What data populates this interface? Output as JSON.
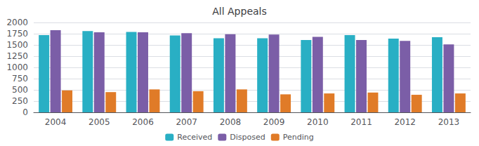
{
  "chart_data": {
    "type": "bar",
    "title": "All Appeals",
    "categories": [
      "2004",
      "2005",
      "2006",
      "2007",
      "2008",
      "2009",
      "2010",
      "2011",
      "2012",
      "2013"
    ],
    "series": [
      {
        "name": "Received",
        "color": "#29afc4",
        "values": [
          1720,
          1810,
          1790,
          1710,
          1650,
          1650,
          1610,
          1720,
          1640,
          1670
        ]
      },
      {
        "name": "Disposed",
        "color": "#7b5ea7",
        "values": [
          1830,
          1780,
          1780,
          1760,
          1740,
          1730,
          1680,
          1610,
          1590,
          1510
        ]
      },
      {
        "name": "Pending",
        "color": "#e07b28",
        "values": [
          490,
          450,
          510,
          470,
          510,
          400,
          420,
          440,
          390,
          420
        ]
      }
    ],
    "ylim": [
      0,
      2000
    ],
    "yticks": [
      0,
      250,
      500,
      750,
      1000,
      1250,
      1500,
      1750,
      2000
    ],
    "grid": true,
    "legend": "bottom"
  }
}
